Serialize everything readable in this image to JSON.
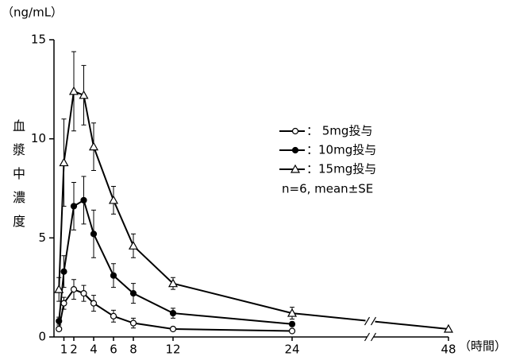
{
  "chart_data": {
    "type": "line",
    "y_unit": "（ng/mL）",
    "y_label": "血漿中濃度",
    "x_unit": "（時間）",
    "x": [
      0.5,
      1,
      2,
      3,
      4,
      6,
      8,
      12,
      24,
      48
    ],
    "series": [
      {
        "name": "： 5mg投与",
        "color": "#000000",
        "marker": "open-circle",
        "values": [
          0.4,
          1.7,
          2.4,
          2.2,
          1.7,
          1.05,
          0.7,
          0.4,
          0.3,
          null
        ],
        "errors": [
          0.1,
          0.3,
          0.5,
          0.4,
          0.4,
          0.3,
          0.25,
          0.05,
          0.05,
          null
        ]
      },
      {
        "name": "：10mg投与",
        "color": "#000000",
        "marker": "filled-circle",
        "values": [
          0.8,
          3.3,
          6.6,
          6.9,
          5.2,
          3.1,
          2.2,
          1.2,
          0.65,
          null
        ],
        "errors": [
          0.2,
          0.8,
          1.2,
          1.2,
          1.2,
          0.6,
          0.5,
          0.25,
          0.1,
          null
        ]
      },
      {
        "name": "：15mg投与",
        "color": "#000000",
        "marker": "open-triangle",
        "values": [
          2.4,
          8.8,
          12.4,
          12.2,
          9.6,
          6.9,
          4.6,
          2.7,
          1.2,
          0.4
        ],
        "errors": [
          0.6,
          2.2,
          2.0,
          1.5,
          1.2,
          0.7,
          0.6,
          0.3,
          0.3,
          null
        ]
      }
    ],
    "note": "n=6, mean±SE",
    "xlim": [
      0,
      48
    ],
    "xticks": [
      1,
      2,
      4,
      6,
      8,
      12,
      24,
      48
    ],
    "ylim": [
      0,
      15
    ],
    "yticks": [
      0,
      5,
      10,
      15
    ],
    "grid": false
  }
}
